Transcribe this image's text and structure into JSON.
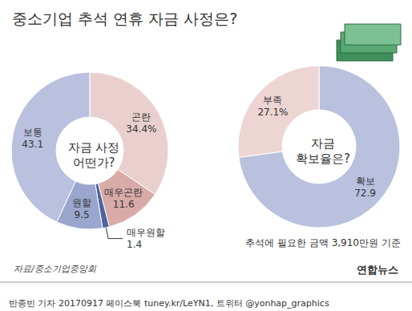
{
  "title": "중소기업 추석 연휴 자금 사정은?",
  "source": "자료/중소기업중앙회",
  "logo": "연합뉴스",
  "credit": "반종빈 기자 20170917 페이스북 tuney.kr/LeYN1, 트위터 @yonhap_graphics",
  "chart_data": [
    {
      "type": "pie",
      "title": "자금 사정\n어떤가?",
      "categories": [
        "곤란",
        "매우곤란",
        "매우원할",
        "원할",
        "보통"
      ],
      "values": [
        34.4,
        11.6,
        1.4,
        9.5,
        43.1
      ],
      "value_labels": [
        "34.4%",
        "11.6",
        "1.4",
        "9.5",
        "43.1"
      ],
      "colors": [
        "#e9cfcd",
        "#d8aaa8",
        "#4f64a0",
        "#9aa6cd",
        "#b9c1df"
      ],
      "data_labels": true
    },
    {
      "type": "pie",
      "title": "자금\n확보율은?",
      "annotation": "추석에 필요한 금액 3,910만원 기준",
      "categories": [
        "확보",
        "부족"
      ],
      "values": [
        72.9,
        27.1
      ],
      "value_labels": [
        "72.9",
        "27.1%"
      ],
      "colors": [
        "#b9c1df",
        "#ecd5d2"
      ],
      "data_labels": true
    }
  ]
}
